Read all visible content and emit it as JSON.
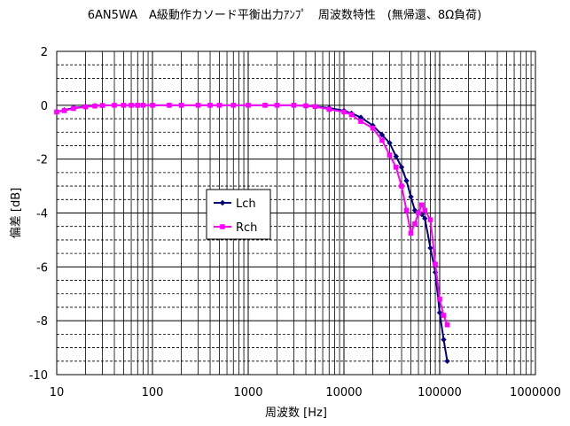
{
  "chart_data": {
    "type": "line",
    "title": "6AN5WA　A級動作カソード平衡出力ｱﾝﾌﾟ　周波数特性　(無帰還、8Ω負荷)",
    "xlabel": "周波数 [Hz]",
    "ylabel": "偏差 [dB]",
    "x_scale": "log",
    "xlim": [
      10,
      1000000
    ],
    "ylim": [
      -10,
      2
    ],
    "x_ticks": [
      10,
      100,
      1000,
      10000,
      100000,
      1000000
    ],
    "x_tick_labels": [
      "10",
      "100",
      "1000",
      "10000",
      "100000",
      "1000000"
    ],
    "y_ticks": [
      -10,
      -8,
      -6,
      -4,
      -2,
      0,
      2
    ],
    "y_tick_labels": [
      "-10",
      "-8",
      "-6",
      "-4",
      "-2",
      "0",
      "2"
    ],
    "grid": true,
    "legend_position": "center-left",
    "series": [
      {
        "name": "Lch",
        "color": "#000080",
        "marker": "diamond",
        "points": [
          [
            10,
            -0.25
          ],
          [
            12,
            -0.18
          ],
          [
            15,
            -0.1
          ],
          [
            20,
            -0.05
          ],
          [
            25,
            -0.02
          ],
          [
            30,
            0
          ],
          [
            40,
            0
          ],
          [
            50,
            0
          ],
          [
            60,
            0
          ],
          [
            70,
            0
          ],
          [
            80,
            0
          ],
          [
            100,
            0
          ],
          [
            150,
            0
          ],
          [
            200,
            0
          ],
          [
            300,
            0
          ],
          [
            400,
            0
          ],
          [
            500,
            0
          ],
          [
            700,
            0
          ],
          [
            1000,
            0
          ],
          [
            1500,
            0
          ],
          [
            2000,
            0
          ],
          [
            3000,
            0
          ],
          [
            4000,
            -0.02
          ],
          [
            5000,
            -0.05
          ],
          [
            7000,
            -0.1
          ],
          [
            10000,
            -0.2
          ],
          [
            12000,
            -0.3
          ],
          [
            15000,
            -0.45
          ],
          [
            20000,
            -0.75
          ],
          [
            25000,
            -1.1
          ],
          [
            30000,
            -1.4
          ],
          [
            35000,
            -1.9
          ],
          [
            40000,
            -2.3
          ],
          [
            45000,
            -2.8
          ],
          [
            50000,
            -3.4
          ],
          [
            55000,
            -3.9
          ],
          [
            65000,
            -4.05
          ],
          [
            70000,
            -4.2
          ],
          [
            80000,
            -5.3
          ],
          [
            90000,
            -6.2
          ],
          [
            100000,
            -7.7
          ],
          [
            110000,
            -8.7
          ],
          [
            120000,
            -9.5
          ]
        ]
      },
      {
        "name": "Rch",
        "color": "#FF00FF",
        "marker": "square",
        "points": [
          [
            10,
            -0.25
          ],
          [
            12,
            -0.2
          ],
          [
            15,
            -0.12
          ],
          [
            20,
            -0.06
          ],
          [
            25,
            -0.03
          ],
          [
            30,
            -0.01
          ],
          [
            40,
            0
          ],
          [
            50,
            0
          ],
          [
            60,
            0
          ],
          [
            70,
            0
          ],
          [
            80,
            0
          ],
          [
            100,
            0
          ],
          [
            150,
            0
          ],
          [
            200,
            0
          ],
          [
            300,
            0
          ],
          [
            400,
            0
          ],
          [
            500,
            0
          ],
          [
            700,
            0
          ],
          [
            1000,
            0
          ],
          [
            1500,
            0
          ],
          [
            2000,
            0
          ],
          [
            3000,
            0
          ],
          [
            4000,
            -0.02
          ],
          [
            5000,
            -0.05
          ],
          [
            7000,
            -0.15
          ],
          [
            10000,
            -0.25
          ],
          [
            12000,
            -0.35
          ],
          [
            15000,
            -0.6
          ],
          [
            20000,
            -0.85
          ],
          [
            25000,
            -1.3
          ],
          [
            30000,
            -1.85
          ],
          [
            35000,
            -2.3
          ],
          [
            40000,
            -3.0
          ],
          [
            45000,
            -3.9
          ],
          [
            50000,
            -4.75
          ],
          [
            55000,
            -4.4
          ],
          [
            60000,
            -4.0
          ],
          [
            65000,
            -3.7
          ],
          [
            70000,
            -3.9
          ],
          [
            80000,
            -4.25
          ],
          [
            90000,
            -5.9
          ],
          [
            100000,
            -7.2
          ],
          [
            110000,
            -7.8
          ],
          [
            120000,
            -8.15
          ]
        ]
      }
    ]
  }
}
